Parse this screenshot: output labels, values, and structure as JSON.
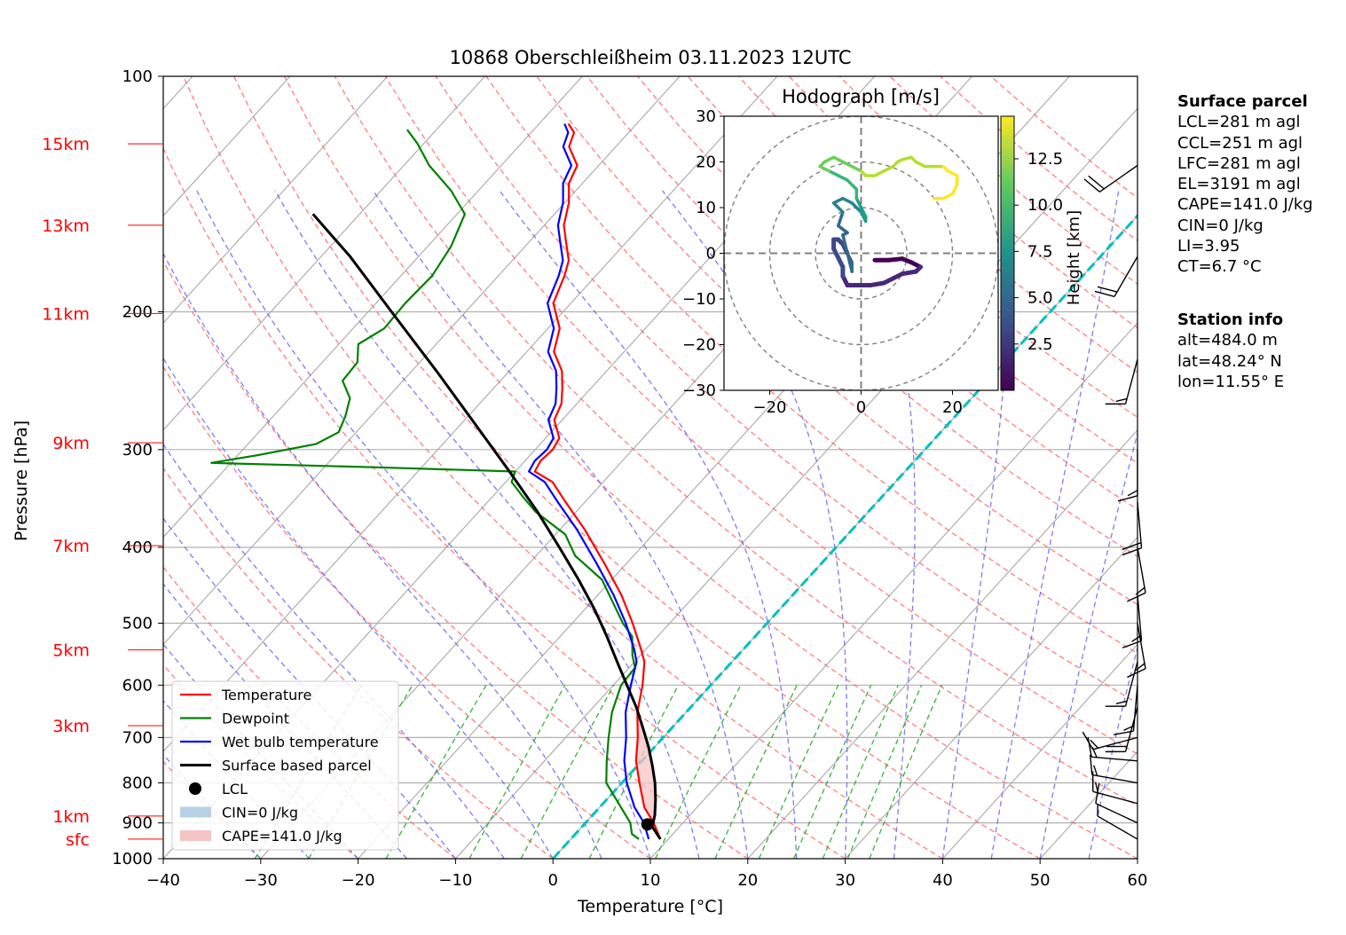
{
  "chart_data": [
    {
      "type": "line",
      "title": "10868 Oberschleißheim 03.11.2023 12UTC",
      "xlabel": "Temperature [°C]",
      "ylabel": "Pressure [hPa]",
      "xlim": [
        -40,
        60
      ],
      "ylim": [
        1000,
        100
      ],
      "y_scale": "log",
      "x_ticks": [
        "−40",
        "−30",
        "−20",
        "−10",
        "0",
        "10",
        "20",
        "30",
        "40",
        "50",
        "60"
      ],
      "x_tick_values": [
        -40,
        -30,
        -20,
        -10,
        0,
        10,
        20,
        30,
        40,
        50,
        60
      ],
      "y_ticks": [
        "100",
        "200",
        "300",
        "400",
        "500",
        "600",
        "700",
        "800",
        "900",
        "1000"
      ],
      "y_tick_values": [
        100,
        200,
        300,
        400,
        500,
        600,
        700,
        800,
        900,
        1000
      ],
      "grid": true,
      "height_labels": [
        {
          "label": "15km",
          "p": 122
        },
        {
          "label": "13km",
          "p": 155
        },
        {
          "label": "11km",
          "p": 201
        },
        {
          "label": "9km",
          "p": 294
        },
        {
          "label": "7km",
          "p": 398
        },
        {
          "label": "5km",
          "p": 541
        },
        {
          "label": "3km",
          "p": 676
        },
        {
          "label": "1km",
          "p": 882
        },
        {
          "label": "sfc",
          "p": 944
        }
      ],
      "height_color": "#ff0000",
      "legend_position": "lower-left",
      "legend": [
        {
          "label": "Temperature",
          "color": "#ff0000",
          "kind": "line"
        },
        {
          "label": "Dewpoint",
          "color": "#008000",
          "kind": "line"
        },
        {
          "label": "Wet bulb temperature",
          "color": "#0000ff",
          "kind": "line"
        },
        {
          "label": "Surface based parcel",
          "color": "#000000",
          "kind": "line"
        },
        {
          "label": "LCL",
          "color": "#000000",
          "kind": "dot"
        },
        {
          "label": "CIN=0 J/kg",
          "color": "#b8d0e4",
          "kind": "patch"
        },
        {
          "label": "CAPE=141.0 J/kg",
          "color": "#f5c4c4",
          "kind": "patch"
        }
      ],
      "series": [
        {
          "name": "Temperature",
          "color": "#ff0000",
          "points": [
            [
              944,
              9.2
            ],
            [
              900,
              7.0
            ],
            [
              860,
              4.6
            ],
            [
              800,
              1.8
            ],
            [
              750,
              -0.6
            ],
            [
              700,
              -2.6
            ],
            [
              650,
              -5.0
            ],
            [
              600,
              -7.0
            ],
            [
              560,
              -9.0
            ],
            [
              540,
              -10.5
            ],
            [
              500,
              -13.8
            ],
            [
              460,
              -17.6
            ],
            [
              420,
              -22.2
            ],
            [
              380,
              -27.4
            ],
            [
              350,
              -32.0
            ],
            [
              330,
              -35.2
            ],
            [
              320,
              -38.0
            ],
            [
              310,
              -38.4
            ],
            [
              300,
              -38.2
            ],
            [
              290,
              -38.6
            ],
            [
              275,
              -40.8
            ],
            [
              262,
              -41.6
            ],
            [
              250,
              -43.0
            ],
            [
              238,
              -44.6
            ],
            [
              225,
              -47.2
            ],
            [
              210,
              -48.8
            ],
            [
              195,
              -51.8
            ],
            [
              180,
              -53.2
            ],
            [
              172,
              -54.2
            ],
            [
              162,
              -56.4
            ],
            [
              155,
              -58.0
            ],
            [
              145,
              -59.6
            ],
            [
              137,
              -61.4
            ],
            [
              130,
              -62.2
            ],
            [
              123,
              -64.8
            ],
            [
              118,
              -65.6
            ],
            [
              115,
              -67.0
            ]
          ]
        },
        {
          "name": "Dewpoint",
          "color": "#008000",
          "points": [
            [
              944,
              7.0
            ],
            [
              930,
              5.8
            ],
            [
              900,
              4.6
            ],
            [
              860,
              2.2
            ],
            [
              800,
              -1.6
            ],
            [
              750,
              -3.6
            ],
            [
              700,
              -5.6
            ],
            [
              650,
              -7.6
            ],
            [
              600,
              -9.2
            ],
            [
              570,
              -9.4
            ],
            [
              550,
              -10.8
            ],
            [
              520,
              -12.6
            ],
            [
              500,
              -14.8
            ],
            [
              470,
              -17.8
            ],
            [
              440,
              -21.0
            ],
            [
              410,
              -26.0
            ],
            [
              385,
              -29.0
            ],
            [
              360,
              -34.2
            ],
            [
              345,
              -36.8
            ],
            [
              330,
              -39.4
            ],
            [
              320,
              -40.0
            ],
            [
              316,
              -55.0
            ],
            [
              312,
              -72.0
            ],
            [
              305,
              -68.0
            ],
            [
              295,
              -63.0
            ],
            [
              285,
              -61.8
            ],
            [
              272,
              -62.6
            ],
            [
              258,
              -63.8
            ],
            [
              245,
              -66.2
            ],
            [
              232,
              -66.4
            ],
            [
              220,
              -68.0
            ],
            [
              210,
              -66.8
            ],
            [
              195,
              -67.0
            ],
            [
              180,
              -66.8
            ],
            [
              165,
              -67.6
            ],
            [
              150,
              -69.2
            ],
            [
              140,
              -72.8
            ],
            [
              130,
              -77.4
            ],
            [
              122,
              -80.6
            ],
            [
              117,
              -83.0
            ]
          ]
        },
        {
          "name": "Wet bulb temperature",
          "color": "#0000ff",
          "points": [
            [
              944,
              8.0
            ],
            [
              900,
              6.0
            ],
            [
              860,
              3.6
            ],
            [
              800,
              0.5
            ],
            [
              750,
              -1.8
            ],
            [
              700,
              -3.8
            ],
            [
              650,
              -6.2
            ],
            [
              600,
              -8.2
            ],
            [
              560,
              -9.8
            ],
            [
              540,
              -11.2
            ],
            [
              500,
              -14.5
            ],
            [
              460,
              -18.4
            ],
            [
              420,
              -23.0
            ],
            [
              380,
              -28.2
            ],
            [
              350,
              -32.8
            ],
            [
              330,
              -36.0
            ],
            [
              320,
              -38.6
            ],
            [
              310,
              -39.0
            ],
            [
              300,
              -38.8
            ],
            [
              290,
              -39.2
            ],
            [
              275,
              -41.4
            ],
            [
              262,
              -42.2
            ],
            [
              250,
              -43.6
            ],
            [
              238,
              -45.2
            ],
            [
              225,
              -47.8
            ],
            [
              210,
              -49.4
            ],
            [
              195,
              -52.4
            ],
            [
              180,
              -53.8
            ],
            [
              172,
              -54.8
            ],
            [
              162,
              -57.0
            ],
            [
              155,
              -58.6
            ],
            [
              145,
              -60.2
            ],
            [
              137,
              -62.0
            ],
            [
              130,
              -62.8
            ],
            [
              123,
              -65.4
            ],
            [
              118,
              -66.2
            ],
            [
              115,
              -67.4
            ]
          ]
        },
        {
          "name": "Surface based parcel",
          "color": "#000000",
          "points": [
            [
              944,
              9.2
            ],
            [
              910,
              7.2
            ],
            [
              880,
              6.4
            ],
            [
              840,
              5.0
            ],
            [
              800,
              3.4
            ],
            [
              760,
              1.5
            ],
            [
              720,
              -0.6
            ],
            [
              680,
              -3.0
            ],
            [
              640,
              -5.6
            ],
            [
              600,
              -8.6
            ],
            [
              560,
              -11.8
            ],
            [
              520,
              -15.2
            ],
            [
              480,
              -19.0
            ],
            [
              440,
              -23.4
            ],
            [
              400,
              -28.4
            ],
            [
              360,
              -34.0
            ],
            [
              320,
              -40.6
            ],
            [
              280,
              -48.2
            ],
            [
              240,
              -57.0
            ],
            [
              200,
              -67.6
            ],
            [
              170,
              -77.0
            ],
            [
              150,
              -84.8
            ]
          ]
        }
      ],
      "lcl": {
        "p": 904,
        "t": 6.5
      },
      "cape_color": "#f5c4c4",
      "dry_adiabat_color": "#ff6666",
      "moist_adiabat_color": "#6666ee",
      "mixing_ratio_color": "#22aa22",
      "zero_isotherm_color": "#00c0c0",
      "winds": [
        {
          "p": 944,
          "spd": 6,
          "dir": 300
        },
        {
          "p": 900,
          "spd": 10,
          "dir": 295
        },
        {
          "p": 850,
          "spd": 15,
          "dir": 285
        },
        {
          "p": 800,
          "spd": 15,
          "dir": 280
        },
        {
          "p": 750,
          "spd": 15,
          "dir": 275
        },
        {
          "p": 700,
          "spd": 15,
          "dir": 255
        },
        {
          "p": 640,
          "spd": 20,
          "dir": 195
        },
        {
          "p": 600,
          "spd": 15,
          "dir": 185
        },
        {
          "p": 560,
          "spd": 15,
          "dir": 195
        },
        {
          "p": 500,
          "spd": 15,
          "dir": 170
        },
        {
          "p": 460,
          "spd": 15,
          "dir": 175
        },
        {
          "p": 400,
          "spd": 15,
          "dir": 170
        },
        {
          "p": 350,
          "spd": 20,
          "dir": 175
        },
        {
          "p": 300,
          "spd": 15,
          "dir": 180
        },
        {
          "p": 230,
          "spd": 15,
          "dir": 195
        },
        {
          "p": 170,
          "spd": 20,
          "dir": 210
        },
        {
          "p": 130,
          "spd": 20,
          "dir": 235
        }
      ]
    },
    {
      "type": "line",
      "title": "Hodograph [m/s]",
      "xlim": [
        -30,
        30
      ],
      "ylim": [
        -30,
        30
      ],
      "x_ticks": [
        "−20",
        "0",
        "20"
      ],
      "x_tick_values": [
        -20,
        0,
        20
      ],
      "y_ticks": [
        "30",
        "20",
        "10",
        "0",
        "−10",
        "−20",
        "−30"
      ],
      "y_tick_values": [
        30,
        20,
        10,
        0,
        -10,
        -20,
        -30
      ],
      "rings": [
        10,
        20,
        30
      ],
      "colorbar_label": "Height [km]",
      "colorbar_range": [
        0,
        14.8
      ],
      "colorbar_ticks": [
        "2.5",
        "5.0",
        "7.5",
        "10.0",
        "12.5"
      ],
      "colorbar_tick_values": [
        2.5,
        5.0,
        7.5,
        10.0,
        12.5
      ],
      "points": [
        [
          3,
          -1.5,
          0.2
        ],
        [
          6,
          -1.5,
          0.4
        ],
        [
          9,
          -1.2,
          0.6
        ],
        [
          11,
          -2,
          0.8
        ],
        [
          13,
          -3,
          1.0
        ],
        [
          12,
          -4,
          1.2
        ],
        [
          9,
          -4.5,
          1.4
        ],
        [
          7,
          -5.5,
          1.6
        ],
        [
          5,
          -6.5,
          1.8
        ],
        [
          2,
          -7,
          2.0
        ],
        [
          -1,
          -7,
          2.2
        ],
        [
          -3,
          -7,
          2.4
        ],
        [
          -4,
          -5,
          2.6
        ],
        [
          -4,
          -3,
          2.8
        ],
        [
          -5,
          -1,
          3.0
        ],
        [
          -6,
          1,
          3.2
        ],
        [
          -6,
          3,
          3.4
        ],
        [
          -5,
          3,
          3.6
        ],
        [
          -4,
          2,
          3.8
        ],
        [
          -3,
          0,
          4.0
        ],
        [
          -2,
          -2,
          4.2
        ],
        [
          -2,
          -4,
          4.4
        ],
        [
          -4,
          4,
          4.8
        ],
        [
          -3,
          4.5,
          5.2
        ],
        [
          -5,
          6,
          5.6
        ],
        [
          -4,
          9,
          6.0
        ],
        [
          -6,
          11,
          6.4
        ],
        [
          -4,
          12,
          6.8
        ],
        [
          -2,
          11,
          7.2
        ],
        [
          0,
          9,
          7.6
        ],
        [
          1,
          7,
          8.0
        ],
        [
          1,
          8,
          8.4
        ],
        [
          0,
          10,
          8.8
        ],
        [
          -1,
          12,
          9.2
        ],
        [
          -1,
          14,
          9.6
        ],
        [
          -3,
          16,
          10.0
        ],
        [
          -5,
          17,
          10.4
        ],
        [
          -7,
          18,
          10.8
        ],
        [
          -9,
          19,
          11.2
        ],
        [
          -8,
          20,
          11.6
        ],
        [
          -6,
          21,
          11.8
        ],
        [
          -4,
          20,
          12.0
        ],
        [
          -2,
          19,
          12.2
        ],
        [
          0,
          18,
          12.4
        ],
        [
          1,
          17,
          12.5
        ],
        [
          3,
          17,
          12.6
        ],
        [
          5,
          18,
          12.7
        ],
        [
          7,
          19,
          12.8
        ],
        [
          8,
          20,
          12.9
        ],
        [
          9,
          20.5,
          13.0
        ],
        [
          11,
          21,
          13.2
        ],
        [
          12,
          20,
          13.4
        ],
        [
          14,
          19,
          13.6
        ],
        [
          16,
          19,
          13.8
        ],
        [
          18,
          19,
          14.0
        ],
        [
          19,
          18,
          14.2
        ],
        [
          21,
          17,
          14.3
        ],
        [
          21,
          15,
          14.4
        ],
        [
          20,
          13,
          14.5
        ],
        [
          18,
          12,
          14.6
        ],
        [
          16,
          12,
          14.7
        ]
      ]
    }
  ],
  "surface_parcel": {
    "heading": "Surface parcel",
    "lines": [
      "LCL=281 m agl",
      "CCL=251 m agl",
      "LFC=281 m agl",
      "EL=3191 m agl",
      "CAPE=141.0 J/kg",
      "CIN=0 J/kg",
      "LI=3.95",
      "CT=6.7 °C"
    ]
  },
  "station_info": {
    "heading": "Station info",
    "lines": [
      "alt=484.0 m",
      "lat=48.24° N",
      "lon=11.55° E"
    ]
  }
}
